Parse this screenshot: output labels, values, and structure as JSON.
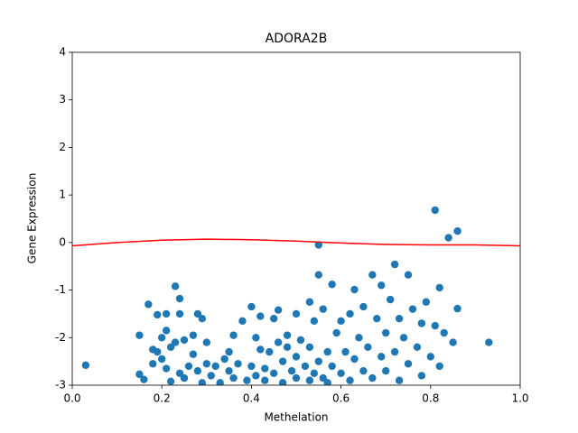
{
  "chart_data": {
    "type": "scatter",
    "title": "ADORA2B",
    "x_label": "Methelation",
    "y_label": "Gene Expression",
    "color": "#1f77b4",
    "x": [
      0.03,
      0.15,
      0.15,
      0.16,
      0.17,
      0.18,
      0.18,
      0.19,
      0.19,
      0.2,
      0.2,
      0.21,
      0.21,
      0.21,
      0.22,
      0.22,
      0.23,
      0.23,
      0.24,
      0.24,
      0.24,
      0.25,
      0.25,
      0.26,
      0.27,
      0.27,
      0.28,
      0.28,
      0.29,
      0.29,
      0.3,
      0.3,
      0.31,
      0.32,
      0.33,
      0.34,
      0.35,
      0.35,
      0.36,
      0.36,
      0.37,
      0.38,
      0.39,
      0.4,
      0.4,
      0.41,
      0.41,
      0.42,
      0.42,
      0.43,
      0.43,
      0.44,
      0.45,
      0.45,
      0.46,
      0.46,
      0.47,
      0.47,
      0.48,
      0.48,
      0.49,
      0.5,
      0.5,
      0.5,
      0.51,
      0.52,
      0.53,
      0.53,
      0.53,
      0.54,
      0.54,
      0.55,
      0.55,
      0.55,
      0.56,
      0.56,
      0.57,
      0.57,
      0.58,
      0.58,
      0.59,
      0.6,
      0.6,
      0.61,
      0.62,
      0.62,
      0.63,
      0.63,
      0.64,
      0.65,
      0.65,
      0.66,
      0.67,
      0.67,
      0.68,
      0.69,
      0.69,
      0.7,
      0.7,
      0.71,
      0.72,
      0.72,
      0.73,
      0.73,
      0.74,
      0.75,
      0.75,
      0.76,
      0.77,
      0.78,
      0.78,
      0.79,
      0.8,
      0.81,
      0.81,
      0.82,
      0.82,
      0.83,
      0.84,
      0.85,
      0.86,
      0.86,
      0.93
    ],
    "values": [
      -2.58,
      -2.77,
      -1.95,
      -2.88,
      -1.3,
      -2.55,
      -2.25,
      -1.52,
      -2.3,
      -2.45,
      -2.0,
      -1.5,
      -2.65,
      -1.85,
      -2.2,
      -2.92,
      -0.92,
      -2.1,
      -1.5,
      -2.75,
      -1.18,
      -2.05,
      -2.85,
      -2.6,
      -2.35,
      -1.95,
      -1.5,
      -2.7,
      -1.6,
      -2.95,
      -2.55,
      -2.1,
      -2.8,
      -2.6,
      -2.95,
      -2.45,
      -2.3,
      -2.7,
      -1.95,
      -2.85,
      -2.55,
      -1.65,
      -2.9,
      -1.35,
      -2.6,
      -2.0,
      -2.8,
      -2.25,
      -1.55,
      -2.9,
      -2.65,
      -2.3,
      -1.6,
      -2.75,
      -2.1,
      -1.42,
      -2.5,
      -2.95,
      -1.95,
      -2.2,
      -2.7,
      -1.5,
      -2.4,
      -2.85,
      -2.05,
      -2.6,
      -1.25,
      -2.9,
      -2.2,
      -1.65,
      -2.75,
      -0.05,
      -0.68,
      -2.5,
      -2.85,
      -1.4,
      -2.3,
      -2.95,
      -0.88,
      -2.6,
      -1.9,
      -2.75,
      -1.65,
      -2.3,
      -2.9,
      -1.5,
      -0.99,
      -2.45,
      -2.0,
      -2.7,
      -1.35,
      -2.2,
      -0.68,
      -2.85,
      -1.6,
      -2.4,
      -0.9,
      -1.9,
      -2.7,
      -1.2,
      -0.46,
      -2.3,
      -1.6,
      -2.9,
      -2.0,
      -0.68,
      -2.55,
      -1.4,
      -2.2,
      -1.7,
      -2.8,
      -1.25,
      -2.4,
      0.68,
      -1.75,
      -0.95,
      -2.6,
      -1.9,
      0.1,
      -2.1,
      0.24,
      -1.39,
      -2.1
    ],
    "fit": {
      "color": "#ff0000",
      "x": [
        0,
        0.1,
        0.2,
        0.3,
        0.4,
        0.5,
        0.6,
        0.7,
        0.8,
        0.9,
        1.0
      ],
      "values": [
        -0.07,
        0.0,
        0.05,
        0.07,
        0.06,
        0.03,
        -0.01,
        -0.04,
        -0.05,
        -0.05,
        -0.07
      ]
    },
    "xlim": [
      0,
      1
    ],
    "ylim": [
      -3,
      4
    ],
    "xticks": [
      {
        "value": 0,
        "label": "0.0"
      },
      0.2,
      0.4,
      0.6,
      0.8,
      {
        "value": 1,
        "label": "1.0"
      }
    ],
    "yticks": [
      -3,
      -2,
      -1,
      0,
      1,
      2,
      3,
      4
    ]
  }
}
